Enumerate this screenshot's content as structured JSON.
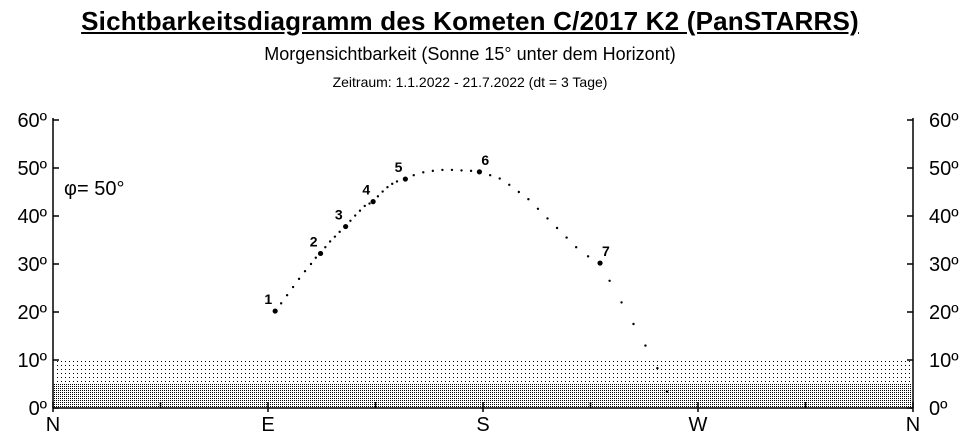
{
  "header": {
    "title": "Sichtbarkeitsdiagramm des Kometen C/2017 K2 (PanSTARRS)",
    "subtitle": "Morgensichtbarkeit (Sonne 15°  unter dem Horizont)",
    "period": "Zeitraum: 1.1.2022 - 21.7.2022  (dt = 3 Tage)"
  },
  "chart_data": {
    "type": "scatter",
    "title": "Sichtbarkeitsdiagramm des Kometen C/2017 K2 (PanSTARRS)",
    "subtitle": "Morgensichtbarkeit (Sonne 15°  unter dem Horizont)",
    "annotation": "φ= 50°",
    "x_axis": {
      "unit": "azimuth_deg",
      "range": [
        0,
        360
      ],
      "compass_labels": [
        {
          "label": "N",
          "az": 0
        },
        {
          "label": "E",
          "az": 90
        },
        {
          "label": "S",
          "az": 180
        },
        {
          "label": "W",
          "az": 270
        },
        {
          "label": "N",
          "az": 360
        }
      ],
      "minor_tick_step": 45
    },
    "y_axis": {
      "unit": "altitude_deg",
      "range": [
        0,
        60
      ],
      "ticks": [
        0,
        10,
        20,
        30,
        40,
        50,
        60
      ],
      "tick_labels": [
        "0º",
        "10º",
        "20º",
        "30º",
        "40º",
        "50º",
        "60º"
      ]
    },
    "shaded_bands": [
      {
        "from": 0,
        "to": 5,
        "density": "dense"
      },
      {
        "from": 5,
        "to": 10,
        "density": "light"
      }
    ],
    "labeled_points": [
      {
        "label": "1",
        "az": 93,
        "alt": 20.2
      },
      {
        "label": "2",
        "az": 112,
        "alt": 32.2
      },
      {
        "label": "3",
        "az": 122.5,
        "alt": 37.8
      },
      {
        "label": "4",
        "az": 134,
        "alt": 43.0
      },
      {
        "label": "5",
        "az": 147.5,
        "alt": 47.7
      },
      {
        "label": "6",
        "az": 178.5,
        "alt": 49.2
      },
      {
        "label": "7",
        "az": 229,
        "alt": 30.2
      }
    ],
    "track": [
      {
        "az": 93,
        "alt": 20.2
      },
      {
        "az": 95.5,
        "alt": 21.8
      },
      {
        "az": 98,
        "alt": 23.5
      },
      {
        "az": 100.5,
        "alt": 25.2
      },
      {
        "az": 103,
        "alt": 26.9
      },
      {
        "az": 105.5,
        "alt": 28.5
      },
      {
        "az": 108,
        "alt": 30.0
      },
      {
        "az": 110,
        "alt": 31.3
      },
      {
        "az": 112,
        "alt": 32.2
      },
      {
        "az": 114,
        "alt": 33.5
      },
      {
        "az": 116,
        "alt": 34.7
      },
      {
        "az": 118,
        "alt": 35.7
      },
      {
        "az": 120,
        "alt": 36.7
      },
      {
        "az": 122.5,
        "alt": 37.8
      },
      {
        "az": 124.5,
        "alt": 39.0
      },
      {
        "az": 126.5,
        "alt": 40.1
      },
      {
        "az": 128.5,
        "alt": 41.1
      },
      {
        "az": 130.5,
        "alt": 42.1
      },
      {
        "az": 132.5,
        "alt": 42.6
      },
      {
        "az": 134,
        "alt": 43.0
      },
      {
        "az": 136,
        "alt": 44.1
      },
      {
        "az": 138,
        "alt": 45.1
      },
      {
        "az": 140,
        "alt": 46.0
      },
      {
        "az": 142,
        "alt": 46.7
      },
      {
        "az": 144,
        "alt": 47.2
      },
      {
        "az": 147.5,
        "alt": 47.7
      },
      {
        "az": 151,
        "alt": 48.5
      },
      {
        "az": 155,
        "alt": 49.1
      },
      {
        "az": 159,
        "alt": 49.4
      },
      {
        "az": 163,
        "alt": 49.6
      },
      {
        "az": 167,
        "alt": 49.6
      },
      {
        "az": 171,
        "alt": 49.5
      },
      {
        "az": 175,
        "alt": 49.4
      },
      {
        "az": 178.5,
        "alt": 49.2
      },
      {
        "az": 183,
        "alt": 48.5
      },
      {
        "az": 187,
        "alt": 47.8
      },
      {
        "az": 191,
        "alt": 46.5
      },
      {
        "az": 195,
        "alt": 45.0
      },
      {
        "az": 199,
        "alt": 43.5
      },
      {
        "az": 203,
        "alt": 41.5
      },
      {
        "az": 207,
        "alt": 39.5
      },
      {
        "az": 211,
        "alt": 37.5
      },
      {
        "az": 215,
        "alt": 35.5
      },
      {
        "az": 219,
        "alt": 33.5
      },
      {
        "az": 224,
        "alt": 31.6
      },
      {
        "az": 229,
        "alt": 30.2
      },
      {
        "az": 233,
        "alt": 26.5
      },
      {
        "az": 238,
        "alt": 22.0
      },
      {
        "az": 243,
        "alt": 17.5
      },
      {
        "az": 248,
        "alt": 13.0
      },
      {
        "az": 253,
        "alt": 8.3
      },
      {
        "az": 257,
        "alt": 3.4
      }
    ]
  }
}
